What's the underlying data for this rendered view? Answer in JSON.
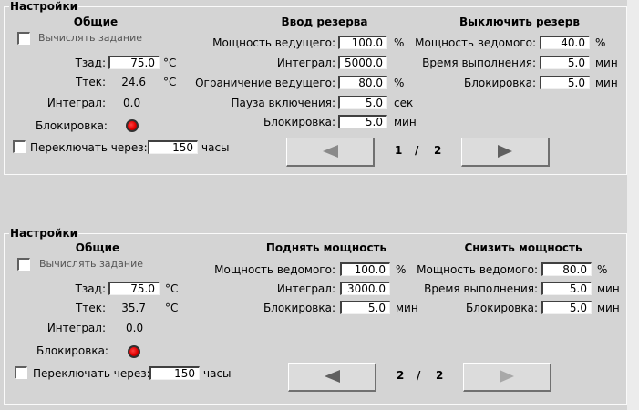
{
  "top": {
    "title": "Настройки",
    "general": {
      "header": "Общие",
      "calc_task": "Вычислять задание",
      "t_set_label": "Тзад:",
      "t_set_value": "75.0",
      "t_set_unit": "°C",
      "t_cur_label": "Ттек:",
      "t_cur_value": "24.6",
      "t_cur_unit": "°C",
      "integral_label": "Интеграл:",
      "integral_value": "0.0",
      "block_label": "Блокировка:",
      "switch_label": "Переключать через:",
      "switch_value": "150",
      "switch_unit": "часы"
    },
    "section2": {
      "header": "Ввод резерва",
      "rows": [
        {
          "label": "Мощность ведущего:",
          "value": "100.0",
          "unit": "%"
        },
        {
          "label": "Интеграл:",
          "value": "5000.0",
          "unit": ""
        },
        {
          "label": "Ограничение ведущего:",
          "value": "80.0",
          "unit": "%"
        },
        {
          "label": "Пауза включения:",
          "value": "5.0",
          "unit": "сек"
        },
        {
          "label": "Блокировка:",
          "value": "5.0",
          "unit": "мин"
        }
      ]
    },
    "section3": {
      "header": "Выключить резерв",
      "rows": [
        {
          "label": "Мощность ведомого:",
          "value": "40.0",
          "unit": "%"
        },
        {
          "label": "Время выполнения:",
          "value": "5.0",
          "unit": "мин"
        },
        {
          "label": "Блокировка:",
          "value": "5.0",
          "unit": "мин"
        }
      ]
    },
    "pager": {
      "current": "1",
      "sep": "/",
      "total": "2"
    }
  },
  "bottom": {
    "title": "Настройки",
    "general": {
      "header": "Общие",
      "calc_task": "Вычислять задание",
      "t_set_label": "Тзад:",
      "t_set_value": "75.0",
      "t_set_unit": "°C",
      "t_cur_label": "Ттек:",
      "t_cur_value": "35.7",
      "t_cur_unit": "°C",
      "integral_label": "Интеграл:",
      "integral_value": "0.0",
      "block_label": "Блокировка:",
      "switch_label": "Переключать через:",
      "switch_value": "150",
      "switch_unit": "часы"
    },
    "section2": {
      "header": "Поднять мощность",
      "rows": [
        {
          "label": "Мощность ведомого:",
          "value": "100.0",
          "unit": "%"
        },
        {
          "label": "Интеграл:",
          "value": "3000.0",
          "unit": ""
        },
        {
          "label": "Блокировка:",
          "value": "5.0",
          "unit": "мин"
        }
      ]
    },
    "section3": {
      "header": "Снизить мощность",
      "rows": [
        {
          "label": "Мощность ведомого:",
          "value": "80.0",
          "unit": "%"
        },
        {
          "label": "Время выполнения:",
          "value": "5.0",
          "unit": "мин"
        },
        {
          "label": "Блокировка:",
          "value": "5.0",
          "unit": "мин"
        }
      ]
    },
    "pager": {
      "current": "2",
      "sep": "/",
      "total": "2"
    }
  },
  "icons": {
    "prev": "triangle-left-icon",
    "next": "triangle-right-icon",
    "indicator": "red-led-icon"
  },
  "colors": {
    "background": "#d4d4d4",
    "indicator": "#e00000",
    "arrow": "#606060"
  }
}
